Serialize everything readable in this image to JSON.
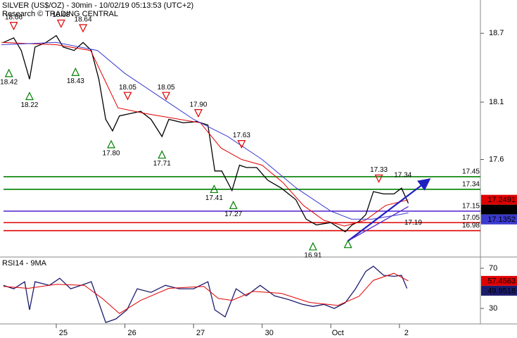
{
  "chart_data": [
    {
      "type": "line",
      "title": "SILVER (US$/OZ) - 30min - 10/02/19 05:13:53 (UTC+2)",
      "subtitle": "Research © TRADING CENTRAL",
      "xlim": [
        -0.82,
        6.18
      ],
      "ylim": [
        16.75,
        18.99
      ],
      "yticks": [
        17.6,
        18.1,
        18.7
      ],
      "series": [
        {
          "color": "#000000",
          "x": [
            -0.77,
            -0.62,
            -0.51,
            -0.39,
            -0.31,
            -0.15,
            0,
            0.1,
            0.26,
            0.39,
            0.51,
            0.62,
            0.72,
            0.82,
            0.92,
            1.08,
            1.23,
            1.38,
            1.54,
            1.64,
            1.85,
            2.05,
            2.21,
            2.31,
            2.41,
            2.56,
            2.67,
            2.77,
            2.92,
            3.08,
            3.28,
            3.49,
            3.64,
            3.79,
            4.0,
            4.21,
            4.31,
            4.41,
            4.51,
            4.62,
            4.77,
            4.92,
            5.03,
            5.13
          ],
          "values": [
            18.62,
            18.66,
            18.55,
            18.3,
            18.58,
            18.62,
            18.68,
            18.58,
            18.55,
            18.62,
            18.55,
            18.3,
            17.95,
            17.85,
            17.98,
            18.0,
            18.02,
            17.95,
            17.8,
            17.95,
            17.92,
            17.93,
            17.9,
            17.5,
            17.5,
            17.33,
            17.55,
            17.53,
            17.53,
            17.42,
            17.35,
            17.25,
            17.08,
            17.03,
            17.05,
            16.97,
            17.03,
            17.06,
            17.12,
            17.32,
            17.3,
            17.3,
            17.35,
            17.219
          ]
        },
        {
          "color": "#e00000",
          "x": [
            -0.8,
            0,
            0.5,
            0.7,
            0.9,
            1.3,
            1.8,
            2.1,
            2.4,
            2.7,
            3.0,
            3.3,
            3.6,
            3.9,
            4.2,
            4.5,
            4.8,
            5.13
          ],
          "values": [
            18.62,
            18.6,
            18.55,
            18.3,
            18.05,
            18.0,
            17.95,
            17.92,
            17.7,
            17.6,
            17.55,
            17.4,
            17.2,
            17.07,
            17.02,
            17.07,
            17.2,
            17.2491
          ]
        },
        {
          "color": "#3a3ad0",
          "x": [
            -0.8,
            0,
            0.6,
            1.0,
            1.5,
            2.0,
            2.5,
            3.0,
            3.5,
            4.0,
            4.3,
            4.6,
            5.0,
            5.13
          ],
          "values": [
            18.6,
            18.62,
            18.55,
            18.35,
            18.15,
            17.95,
            17.8,
            17.6,
            17.35,
            17.15,
            17.08,
            17.08,
            17.12,
            17.1352
          ]
        }
      ],
      "levels": [
        {
          "value": 17.45,
          "color": "#008000"
        },
        {
          "value": 17.34,
          "color": "#008000"
        },
        {
          "value": 17.15,
          "color": "#5a2fd0"
        },
        {
          "value": 17.05,
          "color": "#e00000"
        },
        {
          "value": 16.98,
          "color": "#e00000"
        }
      ],
      "annotations": [
        {
          "text": "18.66",
          "x": -0.62,
          "y": 18.66,
          "kind": "peak"
        },
        {
          "text": "18.68",
          "x": 0.07,
          "y": 18.68,
          "kind": "peak"
        },
        {
          "text": "18.64",
          "x": 0.39,
          "y": 18.64,
          "kind": "peak"
        },
        {
          "text": "18.05",
          "x": 1.04,
          "y": 18.05,
          "kind": "peak"
        },
        {
          "text": "18.05",
          "x": 1.6,
          "y": 18.05,
          "kind": "peak"
        },
        {
          "text": "17.90",
          "x": 2.07,
          "y": 17.9,
          "kind": "peak"
        },
        {
          "text": "17.63",
          "x": 2.7,
          "y": 17.63,
          "kind": "peak"
        },
        {
          "text": "17.33",
          "x": 4.7,
          "y": 17.33,
          "kind": "peak"
        },
        {
          "text": "17.34",
          "x": 5.05,
          "y": 17.34,
          "kind": "label-above"
        },
        {
          "text": "18.42",
          "x": -0.69,
          "y": 18.42,
          "kind": "trough"
        },
        {
          "text": "18.22",
          "x": -0.39,
          "y": 18.22,
          "kind": "trough"
        },
        {
          "text": "18.43",
          "x": 0.28,
          "y": 18.43,
          "kind": "trough"
        },
        {
          "text": "17.80",
          "x": 0.8,
          "y": 17.8,
          "kind": "trough"
        },
        {
          "text": "17.71",
          "x": 1.54,
          "y": 17.71,
          "kind": "trough"
        },
        {
          "text": "17.41",
          "x": 2.3,
          "y": 17.41,
          "kind": "trough"
        },
        {
          "text": "17.27",
          "x": 2.58,
          "y": 17.27,
          "kind": "trough"
        },
        {
          "text": "16.91",
          "x": 3.74,
          "y": 16.91,
          "kind": "trough"
        },
        {
          "x": 4.25,
          "y": 16.93,
          "kind": "trough"
        },
        {
          "text": "17.19",
          "x": 5.2,
          "y": 17.19,
          "kind": "label-below"
        }
      ],
      "trendlines": [
        {
          "color": "#2020c0",
          "arrow": true,
          "x": [
            4.25,
            5.42
          ],
          "y": [
            16.89,
            17.42
          ]
        },
        {
          "color": "#5a2fd0",
          "arrow": false,
          "x": [
            4.28,
            5.13
          ],
          "y": [
            16.9,
            17.19
          ]
        }
      ]
    },
    {
      "type": "line",
      "title": "RSI14 - 9MA",
      "xlim": [
        -0.82,
        6.18
      ],
      "ylim": [
        14.6,
        81.2
      ],
      "yticks": [
        30,
        70
      ],
      "xticks": [
        {
          "value": 0,
          "label": "25"
        },
        {
          "value": 1,
          "label": "26"
        },
        {
          "value": 2,
          "label": "27"
        },
        {
          "value": 3,
          "label": "30"
        },
        {
          "value": 4,
          "label": "Oct"
        },
        {
          "value": 5,
          "label": "2"
        }
      ],
      "series": [
        {
          "color": "#1c1c6e",
          "x": [
            -0.77,
            -0.62,
            -0.46,
            -0.39,
            -0.31,
            -0.1,
            0.05,
            0.21,
            0.36,
            0.51,
            0.62,
            0.72,
            0.87,
            1.03,
            1.18,
            1.38,
            1.59,
            1.79,
            2.0,
            2.21,
            2.31,
            2.46,
            2.62,
            2.77,
            2.97,
            3.18,
            3.38,
            3.59,
            3.74,
            3.9,
            4.05,
            4.21,
            4.36,
            4.51,
            4.62,
            4.77,
            4.92,
            5.03,
            5.11
          ],
          "values": [
            53,
            49.6,
            56.6,
            28.6,
            56.6,
            53,
            60,
            49.6,
            53,
            56.6,
            35.6,
            16,
            19.6,
            28.6,
            49.6,
            46,
            53,
            49.6,
            49.6,
            56.6,
            28.6,
            21.6,
            49.6,
            42.6,
            53,
            42.6,
            39,
            34,
            32,
            34,
            30,
            35.6,
            49.6,
            67,
            72,
            63,
            62,
            63,
            49.9518
          ]
        },
        {
          "color": "#e00000",
          "x": [
            -0.77,
            -0.41,
            0,
            0.41,
            0.67,
            0.92,
            1.23,
            1.64,
            2.15,
            2.36,
            2.56,
            2.87,
            3.28,
            3.69,
            4.1,
            4.41,
            4.62,
            4.92,
            5.13
          ],
          "values": [
            52,
            50,
            54,
            53,
            40,
            25,
            38,
            50,
            52,
            40,
            38,
            47,
            45,
            36,
            33,
            42,
            58,
            65,
            57.4563
          ]
        }
      ]
    }
  ]
}
